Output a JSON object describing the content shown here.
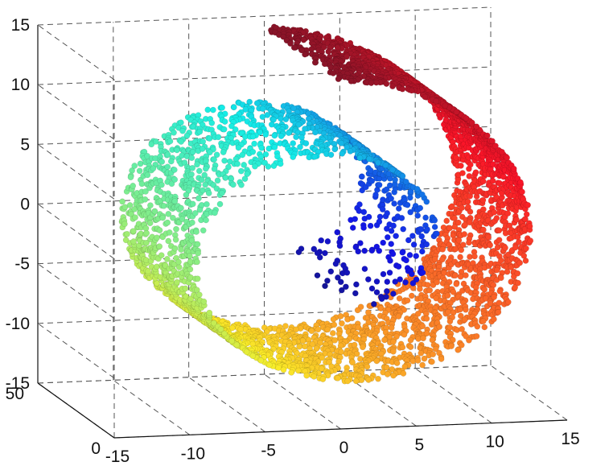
{
  "chart_data": {
    "type": "scatter",
    "subtype": "3d-scatter",
    "dataset": "swiss roll",
    "title": "",
    "xlabel": "",
    "ylabel": "",
    "zlabel": "",
    "grid": true,
    "colormap": "jet",
    "color_by": "roll angle",
    "xlim": [
      -15,
      15
    ],
    "ylim": [
      0,
      50
    ],
    "zlim": [
      -15,
      15
    ],
    "x_ticks": [
      -15,
      -10,
      -5,
      0,
      5,
      10,
      15
    ],
    "y_ticks": [
      0,
      50
    ],
    "z_ticks": [
      -15,
      -10,
      -5,
      0,
      5,
      10,
      15
    ],
    "x_tick_labels": [
      "-15",
      "-10",
      "-5",
      "0",
      "5",
      "10",
      "15"
    ],
    "y_tick_labels": [
      "0",
      "50"
    ],
    "z_tick_labels": [
      "-15",
      "-10",
      "-5",
      "0",
      "5",
      "10",
      "15"
    ],
    "surface": {
      "x": "t*cos(t)",
      "z": "t*sin(t)",
      "t_range": [
        4.71,
        14.14
      ],
      "y_range": [
        0,
        50
      ]
    },
    "colormap_stops": [
      "#00007f",
      "#0000ff",
      "#007fff",
      "#00ffff",
      "#7fff7f",
      "#ffff00",
      "#ff7f00",
      "#ff0000",
      "#7f0000"
    ]
  }
}
